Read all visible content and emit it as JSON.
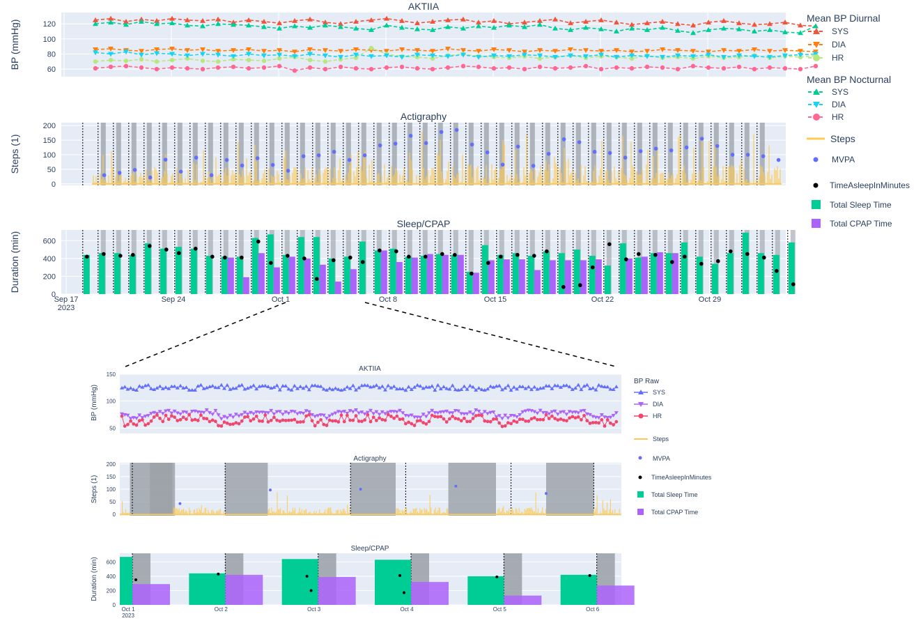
{
  "chart_data": [
    {
      "id": "aktiia-overview",
      "type": "line",
      "title": "AKTIIA",
      "ylabel": "BP (mmHg)",
      "xrange": [
        "2023-09-17",
        "2023-11-03"
      ],
      "ylim": [
        50,
        135
      ],
      "yticks": [
        60,
        80,
        100,
        120
      ],
      "series": [
        {
          "name": "SYS",
          "group": "Mean BP Diurnal",
          "marker": "triangle-up",
          "color": "#ef553b",
          "start_day": 2,
          "values": [
            125,
            127,
            123,
            126,
            124,
            127,
            125,
            124,
            126,
            122,
            125,
            123,
            121,
            124,
            126,
            122,
            120,
            123,
            125,
            127,
            124,
            121,
            123,
            125,
            126,
            122,
            124,
            120,
            122,
            124,
            126,
            121,
            123,
            125,
            122,
            119,
            121,
            123,
            120,
            118,
            122,
            124,
            121,
            119,
            120,
            122,
            118,
            117
          ]
        },
        {
          "name": "DIA",
          "group": "Mean BP Diurnal",
          "marker": "triangle-down",
          "color": "#ff7f0e",
          "start_day": 2,
          "values": [
            86,
            87,
            85,
            84,
            86,
            87,
            85,
            86,
            84,
            85,
            86,
            84,
            85,
            83,
            86,
            85,
            84,
            86,
            85,
            84,
            86,
            85,
            84,
            87,
            85,
            84,
            86,
            85,
            83,
            85,
            84,
            86,
            85,
            84,
            85,
            83,
            84,
            86,
            85,
            84,
            83,
            85,
            84,
            86,
            84,
            85,
            84,
            83
          ]
        },
        {
          "name": "HR",
          "group": "Mean BP Diurnal",
          "marker": "circle",
          "color": "#b6e880",
          "start_day": 2,
          "values": [
            70,
            72,
            71,
            73,
            70,
            72,
            74,
            71,
            70,
            73,
            72,
            71,
            74,
            76,
            72,
            70,
            73,
            75,
            88,
            80,
            77,
            76,
            74,
            78,
            80,
            77,
            76,
            75,
            77,
            74,
            76,
            78,
            75,
            77,
            76,
            74,
            78,
            75,
            76,
            74,
            77,
            75,
            76,
            78,
            75,
            77,
            76,
            78
          ]
        },
        {
          "name": "SYS",
          "group": "Mean BP Nocturnal",
          "marker": "triangle-up",
          "color": "#00cc96",
          "start_day": 2,
          "values": [
            120,
            122,
            119,
            123,
            120,
            121,
            118,
            117,
            120,
            119,
            118,
            116,
            114,
            117,
            115,
            118,
            116,
            114,
            112,
            118,
            115,
            113,
            112,
            116,
            114,
            117,
            115,
            118,
            116,
            119,
            114,
            112,
            115,
            113,
            110,
            114,
            112,
            115,
            111,
            108,
            112,
            114,
            113,
            110,
            112,
            109,
            108,
            117
          ]
        },
        {
          "name": "DIA",
          "group": "Mean BP Nocturnal",
          "marker": "triangle-down",
          "color": "#19d3f3",
          "start_day": 2,
          "values": [
            82,
            80,
            83,
            79,
            81,
            80,
            78,
            80,
            79,
            77,
            80,
            78,
            79,
            77,
            80,
            78,
            76,
            79,
            77,
            78,
            76,
            79,
            78,
            77,
            79,
            76,
            78,
            77,
            79,
            78,
            76,
            78,
            77,
            79,
            76,
            78,
            77,
            76,
            78,
            77,
            79,
            76,
            78,
            77,
            76,
            78,
            79,
            80
          ]
        },
        {
          "name": "HR",
          "group": "Mean BP Nocturnal",
          "marker": "circle",
          "color": "#ff6692",
          "start_day": 2,
          "values": [
            61,
            63,
            64,
            62,
            60,
            62,
            61,
            60,
            62,
            63,
            61,
            62,
            64,
            58,
            62,
            60,
            63,
            61,
            60,
            62,
            63,
            61,
            60,
            62,
            64,
            63,
            61,
            62,
            60,
            63,
            61,
            62,
            64,
            60,
            62,
            61,
            63,
            62,
            60,
            64,
            62,
            61,
            63,
            60,
            62,
            61,
            60,
            64
          ]
        }
      ]
    },
    {
      "id": "actigraphy-overview",
      "type": "bar",
      "title": "Actigraphy",
      "ylabel": "Steps (1)",
      "ylim": [
        -5,
        210
      ],
      "yticks": [
        0,
        50,
        100,
        150,
        200
      ],
      "mvpa": [
        30,
        38,
        48,
        22,
        83,
        42,
        90,
        30,
        82,
        63,
        88,
        65,
        45,
        95,
        98,
        110,
        82,
        98,
        132,
        138,
        165,
        140,
        178,
        185,
        135,
        108,
        66,
        128,
        62,
        103,
        153,
        143,
        110,
        106,
        90,
        112,
        121,
        115,
        125,
        155,
        130,
        100,
        100,
        95,
        82
      ],
      "mvpa_color": "#636efa",
      "steps_color": "#fecb52"
    },
    {
      "id": "sleep-overview",
      "type": "bar",
      "title": "Sleep/CPAP",
      "ylabel": "Duration (min)",
      "ylim": [
        0,
        720
      ],
      "yticks": [
        0,
        200,
        400,
        600
      ],
      "xticks": [
        "Sep 17\n2023",
        "Sep 24",
        "Oct 1",
        "Oct 8",
        "Oct 15",
        "Oct 22",
        "Oct 29"
      ],
      "total_sleep_time": [
        440,
        460,
        460,
        440,
        570,
        510,
        530,
        510,
        430,
        420,
        420,
        630,
        670,
        440,
        640,
        640,
        400,
        420,
        590,
        490,
        510,
        420,
        430,
        450,
        440,
        250,
        550,
        440,
        460,
        430,
        480,
        460,
        500,
        430,
        320,
        570,
        410,
        460,
        460,
        580,
        420,
        340,
        460,
        690,
        460,
        440,
        580
      ],
      "total_cpap_time": [
        null,
        null,
        null,
        null,
        null,
        null,
        null,
        null,
        null,
        410,
        190,
        460,
        300,
        420,
        400,
        330,
        140,
        280,
        null,
        490,
        360,
        410,
        450,
        440,
        440,
        240,
        380,
        390,
        390,
        270,
        380,
        380,
        380,
        390,
        null,
        400,
        420,
        470,
        460,
        null,
        null,
        null,
        null,
        null,
        null,
        null,
        null
      ],
      "time_asleep_minutes": [
        420,
        450,
        430,
        440,
        540,
        500,
        460,
        510,
        420,
        410,
        410,
        590,
        350,
        430,
        400,
        170,
        380,
        410,
        360,
        490,
        480,
        420,
        420,
        450,
        440,
        230,
        350,
        420,
        440,
        430,
        480,
        80,
        100,
        300,
        560,
        390,
        450,
        440,
        360,
        420,
        340,
        370,
        480,
        450,
        410,
        260,
        110
      ]
    },
    {
      "id": "aktiia-zoom",
      "type": "scatter",
      "title": "AKTIIA",
      "ylabel": "BP (mmHg)",
      "ylim": [
        40,
        150
      ],
      "yticks": [
        50,
        100,
        150
      ],
      "series": [
        {
          "name": "SYS",
          "marker": "triangle-up",
          "color": "#636efa",
          "level": 125,
          "spread": 10
        },
        {
          "name": "DIA",
          "marker": "triangle-down",
          "color": "#ab63fa",
          "level": 80,
          "spread": 9
        },
        {
          "name": "HR",
          "marker": "circle",
          "color": "#ef476f",
          "level": 68,
          "spread": 14
        }
      ]
    },
    {
      "id": "actigraphy-zoom",
      "type": "bar",
      "title": "Actigraphy",
      "ylabel": "Steps (1)",
      "ylim": [
        -5,
        205
      ],
      "yticks": [
        0,
        50,
        100,
        150,
        200
      ],
      "mvpa": [
        43,
        97,
        100,
        112,
        83
      ]
    },
    {
      "id": "sleep-zoom",
      "type": "bar",
      "title": "Sleep/CPAP",
      "ylabel": "Duration (min)",
      "ylim": [
        0,
        720
      ],
      "yticks": [
        0,
        200,
        400,
        600
      ],
      "xticks": [
        "Oct 1\n2023",
        "Oct 2",
        "Oct 3",
        "Oct 4",
        "Oct 5",
        "Oct 6"
      ],
      "total_sleep_time": [
        670,
        440,
        640,
        630,
        400,
        420
      ],
      "total_cpap_time": [
        290,
        420,
        390,
        320,
        130,
        270
      ],
      "time_asleep_minutes": [
        350,
        430,
        200,
        170,
        390,
        410
      ],
      "time_asleep_minutes_b": [
        null,
        null,
        400,
        410,
        null,
        null
      ]
    }
  ],
  "legend_main": {
    "diurnal_title": "Mean BP Diurnal",
    "nocturnal_title": "Mean BP Nocturnal",
    "sys": "SYS",
    "dia": "DIA",
    "hr": "HR",
    "steps": "Steps",
    "mvpa": "MVPA",
    "time_asleep": "TimeAsleepInMinutes",
    "total_sleep": "Total Sleep Time",
    "total_cpap": "Total CPAP Time"
  },
  "legend_zoom": {
    "title": "BP Raw",
    "sys": "SYS",
    "dia": "DIA",
    "hr": "HR",
    "steps": "Steps",
    "mvpa": "MVPA",
    "time_asleep": "TimeAsleepInMinutes",
    "total_sleep": "Total Sleep Time",
    "total_cpap": "Total CPAP Time"
  },
  "colors": {
    "sleep": "#00cc96",
    "cpap": "#ab63fa",
    "steps": "#fecb52",
    "mvpa": "#636efa",
    "asleep": "#000000",
    "night_shade": "#9aa0a6"
  }
}
